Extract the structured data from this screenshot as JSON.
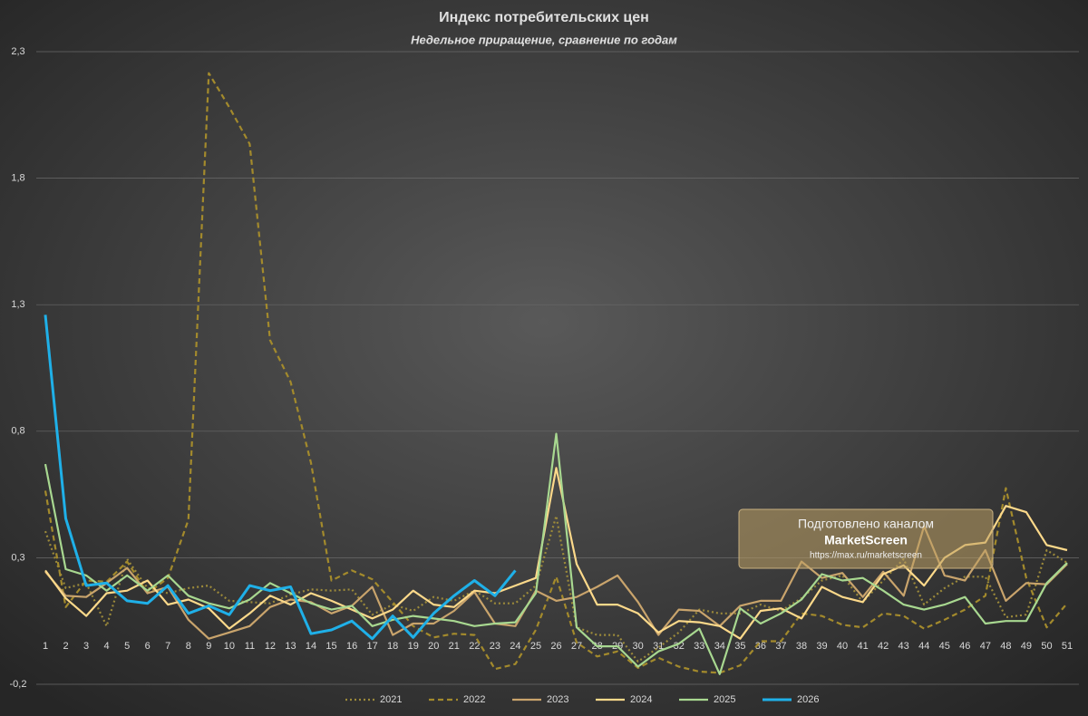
{
  "chart_data": {
    "type": "line",
    "title": "Индекс потребительских цен",
    "subtitle": "Недельное приращение, сравнение по годам",
    "categories": [
      "1",
      "2",
      "3",
      "4",
      "5",
      "6",
      "7",
      "8",
      "9",
      "10",
      "11",
      "12",
      "13",
      "14",
      "15",
      "16",
      "17",
      "18",
      "19",
      "20",
      "21",
      "22",
      "23",
      "24",
      "25",
      "26",
      "27",
      "28",
      "29",
      "30",
      "31",
      "32",
      "33",
      "34",
      "35",
      "36",
      "37",
      "38",
      "39",
      "40",
      "41",
      "42",
      "43",
      "44",
      "45",
      "46",
      "47",
      "48",
      "49",
      "50",
      "51"
    ],
    "ylim": [
      -0.2,
      2.3
    ],
    "yticks": [
      {
        "value": -0.2,
        "label": "-0,2"
      },
      {
        "value": 0.3,
        "label": "0,3"
      },
      {
        "value": 0.8,
        "label": "0,8"
      },
      {
        "value": 1.3,
        "label": "1,3"
      },
      {
        "value": 1.8,
        "label": "1,8"
      },
      {
        "value": 2.3,
        "label": "2,3"
      }
    ],
    "grid": true,
    "legend": "bottom",
    "annotations": [
      "Подготовлено каналом",
      "MarketScreen",
      "https://max.ru/marketscreen"
    ],
    "series": [
      {
        "name": "2021",
        "color": "#9c8a3a",
        "style": "dotted",
        "values": [
          0.405,
          0.18,
          0.2,
          0.03,
          0.295,
          0.18,
          0.16,
          0.18,
          0.19,
          0.13,
          0.125,
          0.12,
          0.155,
          0.175,
          0.17,
          0.175,
          0.075,
          0.115,
          0.09,
          0.145,
          0.13,
          0.17,
          0.12,
          0.12,
          0.19,
          0.465,
          0.025,
          -0.005,
          -0.005,
          -0.11,
          -0.055,
          0.005,
          0.095,
          0.08,
          0.08,
          0.115,
          0.09,
          0.14,
          0.21,
          0.23,
          0.125,
          0.21,
          0.295,
          0.115,
          0.18,
          0.225,
          0.225,
          0.065,
          0.075,
          0.33,
          0.28
        ]
      },
      {
        "name": "2022",
        "color": "#a38a2c",
        "style": "dashed",
        "values": [
          0.565,
          0.105,
          0.21,
          0.205,
          0.285,
          0.16,
          0.22,
          0.45,
          2.215,
          2.08,
          1.935,
          1.16,
          0.995,
          0.675,
          0.21,
          0.25,
          0.215,
          0.125,
          0.03,
          -0.015,
          0.0,
          -0.005,
          -0.14,
          -0.12,
          0.015,
          0.225,
          -0.035,
          -0.09,
          -0.07,
          -0.135,
          -0.095,
          -0.13,
          -0.15,
          -0.155,
          -0.125,
          -0.03,
          -0.03,
          0.08,
          0.07,
          0.035,
          0.025,
          0.08,
          0.07,
          0.02,
          0.055,
          0.095,
          0.15,
          0.575,
          0.22,
          0.025,
          0.12
        ]
      },
      {
        "name": "2023",
        "color": "#c9a46c",
        "style": "solid",
        "values": [
          0.245,
          0.15,
          0.145,
          0.2,
          0.26,
          0.16,
          0.185,
          0.055,
          -0.02,
          0.005,
          0.03,
          0.105,
          0.135,
          0.125,
          0.08,
          0.11,
          0.185,
          -0.005,
          0.04,
          0.04,
          0.09,
          0.165,
          0.04,
          0.03,
          0.17,
          0.13,
          0.145,
          0.185,
          0.23,
          0.125,
          -0.005,
          0.095,
          0.09,
          0.03,
          0.11,
          0.13,
          0.13,
          0.285,
          0.22,
          0.24,
          0.145,
          0.245,
          0.15,
          0.425,
          0.23,
          0.21,
          0.33,
          0.13,
          0.2,
          0.195,
          0.275
        ]
      },
      {
        "name": "2024",
        "color": "#fcd98a",
        "style": "solid",
        "values": [
          0.25,
          0.14,
          0.07,
          0.16,
          0.17,
          0.21,
          0.115,
          0.135,
          0.1,
          0.02,
          0.08,
          0.15,
          0.115,
          0.16,
          0.13,
          0.095,
          0.06,
          0.095,
          0.17,
          0.115,
          0.105,
          0.17,
          0.16,
          0.19,
          0.22,
          0.655,
          0.275,
          0.115,
          0.115,
          0.08,
          0.005,
          0.05,
          0.045,
          0.03,
          -0.02,
          0.09,
          0.1,
          0.06,
          0.185,
          0.145,
          0.125,
          0.235,
          0.27,
          0.19,
          0.3,
          0.35,
          0.36,
          0.505,
          0.48,
          0.35,
          0.33
        ]
      },
      {
        "name": "2025",
        "color": "#a8d890",
        "style": "solid",
        "values": [
          0.67,
          0.255,
          0.23,
          0.17,
          0.23,
          0.17,
          0.23,
          0.15,
          0.12,
          0.1,
          0.135,
          0.2,
          0.16,
          0.12,
          0.095,
          0.11,
          0.03,
          0.055,
          0.07,
          0.06,
          0.05,
          0.03,
          0.04,
          0.045,
          0.16,
          0.79,
          0.025,
          -0.05,
          -0.05,
          -0.13,
          -0.07,
          -0.04,
          0.02,
          -0.16,
          0.1,
          0.04,
          0.08,
          0.135,
          0.235,
          0.21,
          0.22,
          0.17,
          0.115,
          0.095,
          0.115,
          0.145,
          0.04,
          0.05,
          0.05,
          0.2,
          0.28
        ]
      },
      {
        "name": "2026",
        "color": "#1fb0e8",
        "style": "solid",
        "width": 3,
        "values": [
          1.26,
          0.455,
          0.19,
          0.2,
          0.13,
          0.12,
          0.19,
          0.08,
          0.11,
          0.075,
          0.19,
          0.17,
          0.185,
          0.0,
          0.015,
          0.05,
          -0.02,
          0.07,
          -0.015,
          0.08,
          0.15,
          0.21,
          0.15,
          0.25,
          null,
          null,
          null,
          null,
          null,
          null,
          null,
          null,
          null,
          null,
          null,
          null,
          null,
          null,
          null,
          null,
          null,
          null,
          null,
          null,
          null,
          null,
          null,
          null,
          null,
          null,
          null
        ]
      }
    ]
  }
}
